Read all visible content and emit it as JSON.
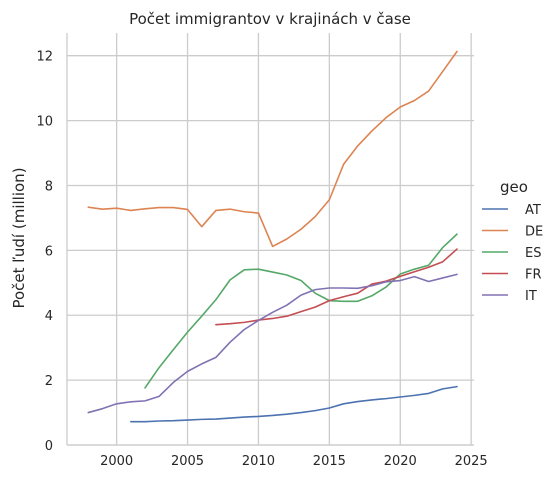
{
  "chart_data": {
    "type": "line",
    "title": "Počet immigrantov v krajinách v čase",
    "xlabel": "",
    "ylabel": "Počet ľudí (million)",
    "xlim": [
      1996.5,
      2025.2
    ],
    "ylim": [
      0,
      12.7
    ],
    "xticks": [
      2000,
      2005,
      2010,
      2015,
      2020,
      2025
    ],
    "yticks": [
      0,
      2,
      4,
      6,
      8,
      10,
      12
    ],
    "grid": true,
    "legend": {
      "title": "geo",
      "placement": "right"
    },
    "series": [
      {
        "name": "AT",
        "color": "#4c72b0",
        "x": [
          2001,
          2002,
          2003,
          2004,
          2005,
          2006,
          2007,
          2008,
          2009,
          2010,
          2011,
          2012,
          2013,
          2014,
          2015,
          2016,
          2017,
          2018,
          2019,
          2020,
          2021,
          2022,
          2023,
          2024
        ],
        "y": [
          0.72,
          0.72,
          0.74,
          0.75,
          0.77,
          0.79,
          0.8,
          0.83,
          0.86,
          0.88,
          0.91,
          0.95,
          1.0,
          1.06,
          1.14,
          1.27,
          1.34,
          1.39,
          1.43,
          1.48,
          1.53,
          1.59,
          1.73,
          1.8
        ]
      },
      {
        "name": "DE",
        "color": "#dd8452",
        "x": [
          1998,
          1999,
          2000,
          2001,
          2002,
          2003,
          2004,
          2005,
          2006,
          2007,
          2008,
          2009,
          2010,
          2011,
          2012,
          2013,
          2014,
          2015,
          2016,
          2017,
          2018,
          2019,
          2020,
          2021,
          2022,
          2023,
          2024
        ],
        "y": [
          7.33,
          7.27,
          7.3,
          7.23,
          7.28,
          7.32,
          7.32,
          7.26,
          6.73,
          7.23,
          7.27,
          7.19,
          7.15,
          6.12,
          6.35,
          6.65,
          7.04,
          7.56,
          8.65,
          9.22,
          9.68,
          10.09,
          10.42,
          10.62,
          10.91,
          11.52,
          12.13
        ]
      },
      {
        "name": "ES",
        "color": "#55a868",
        "x": [
          2002,
          2003,
          2004,
          2005,
          2006,
          2007,
          2008,
          2009,
          2010,
          2011,
          2012,
          2013,
          2014,
          2015,
          2016,
          2017,
          2018,
          2019,
          2020,
          2021,
          2022,
          2023,
          2024
        ],
        "y": [
          1.76,
          2.39,
          2.94,
          3.48,
          3.97,
          4.48,
          5.09,
          5.4,
          5.42,
          5.33,
          5.24,
          5.07,
          4.68,
          4.45,
          4.43,
          4.43,
          4.6,
          4.87,
          5.27,
          5.42,
          5.54,
          6.09,
          6.5
        ]
      },
      {
        "name": "FR",
        "color": "#c44e52",
        "x": [
          2007,
          2008,
          2009,
          2010,
          2011,
          2012,
          2013,
          2014,
          2015,
          2016,
          2017,
          2018,
          2019,
          2020,
          2021,
          2022,
          2023,
          2024
        ],
        "y": [
          3.71,
          3.74,
          3.78,
          3.85,
          3.9,
          3.97,
          4.11,
          4.25,
          4.45,
          4.57,
          4.68,
          4.96,
          5.05,
          5.2,
          5.34,
          5.48,
          5.65,
          6.04
        ]
      },
      {
        "name": "IT",
        "color": "#8172b3",
        "x": [
          1998,
          1999,
          2000,
          2001,
          2002,
          2003,
          2004,
          2005,
          2006,
          2007,
          2008,
          2009,
          2010,
          2011,
          2012,
          2013,
          2014,
          2015,
          2016,
          2017,
          2018,
          2019,
          2020,
          2021,
          2022,
          2023,
          2024
        ],
        "y": [
          1.0,
          1.12,
          1.27,
          1.33,
          1.36,
          1.5,
          1.93,
          2.27,
          2.5,
          2.7,
          3.17,
          3.56,
          3.84,
          4.09,
          4.31,
          4.62,
          4.79,
          4.84,
          4.84,
          4.83,
          4.91,
          5.03,
          5.07,
          5.19,
          5.04,
          5.15,
          5.26
        ]
      }
    ]
  }
}
